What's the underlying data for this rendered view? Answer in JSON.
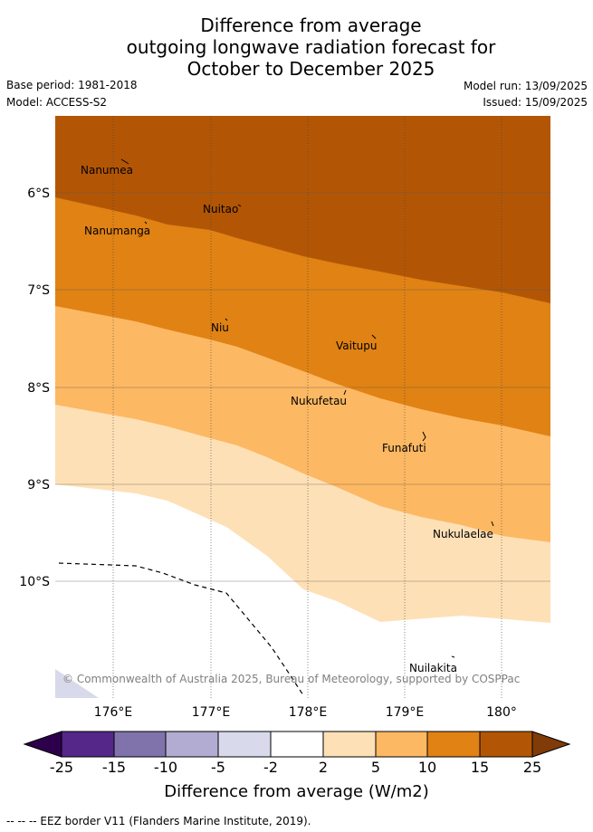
{
  "header": {
    "title_lines": [
      "Difference from average",
      "outgoing longwave radiation forecast for",
      "October to December 2025"
    ],
    "base_period": "Base period: 1981-2018",
    "model": "Model: ACCESS-S2",
    "model_run": "Model run: 13/09/2025",
    "issued": "Issued: 15/09/2025"
  },
  "map": {
    "lat_labels": [
      "6°S",
      "7°S",
      "8°S",
      "9°S",
      "10°S"
    ],
    "lon_labels": [
      "176°E",
      "177°E",
      "178°E",
      "179°E",
      "180°"
    ],
    "places": [
      {
        "name": "Nanumea"
      },
      {
        "name": "Nuitao"
      },
      {
        "name": "Nanumanga"
      },
      {
        "name": "Niu"
      },
      {
        "name": "Vaitupu"
      },
      {
        "name": "Nukufetau"
      },
      {
        "name": "Funafuti"
      },
      {
        "name": "Nukulaelae"
      },
      {
        "name": "Nuilakita"
      }
    ],
    "copyright": "© Commonwealth of Australia 2025, Bureau of Meteorology, supported by COSPPac",
    "colors": {
      "gt15": "#b25606",
      "10to15": "#e08214",
      "5to10": "#fdb863",
      "2to5": "#fee0b6",
      "neutral": "#ffffff",
      "neg2to5": "#d8daeb",
      "neg5to10": "#b2abd2",
      "neg10to15": "#8073ac",
      "neg15to25": "#542788",
      "lt25": "#2d004b",
      "gt25": "#7f3b08"
    }
  },
  "colorbar": {
    "ticks": [
      "-25",
      "-15",
      "-10",
      "-5",
      "-2",
      "2",
      "5",
      "10",
      "15",
      "25"
    ],
    "label": "Difference from average (W/m2)"
  },
  "footer": {
    "eez_note": "-- -- -- EEZ border V11 (Flanders Marine Institute, 2019)."
  }
}
